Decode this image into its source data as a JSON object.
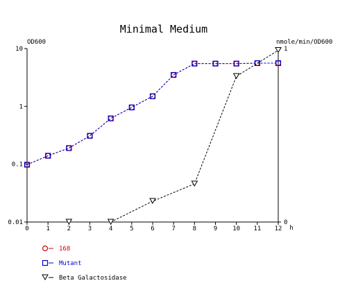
{
  "chart_data": {
    "type": "line",
    "title": "Minimal Medium",
    "ylabel_left": "OD600",
    "ylabel_right": "nmole/min/OD600",
    "xlabel": "h",
    "x_ticks": [
      "0",
      "1",
      "2",
      "3",
      "4",
      "5",
      "6",
      "7",
      "8",
      "9",
      "10",
      "11",
      "12"
    ],
    "y_left_ticks": [
      "10",
      "1",
      "0.1",
      "0.01"
    ],
    "y_left_scale": "log",
    "y_left_range": [
      0.01,
      10
    ],
    "y_right_ticks": [
      "1",
      "0"
    ],
    "y_right_range": [
      0,
      1
    ],
    "x_range": [
      0,
      12
    ],
    "grid": false,
    "series": [
      {
        "name": "168",
        "axis": "left",
        "color": "#cc0000",
        "marker": "circle",
        "x": [
          0,
          1,
          2,
          3,
          4,
          5,
          6,
          7,
          8,
          9,
          10,
          11,
          12
        ],
        "y": [
          0.098,
          0.14,
          0.19,
          0.31,
          0.62,
          0.96,
          1.5,
          3.5,
          5.5,
          5.5,
          5.5,
          5.6,
          5.6
        ]
      },
      {
        "name": "Mutant",
        "axis": "left",
        "color": "#0000cc",
        "marker": "square",
        "x": [
          0,
          1,
          2,
          3,
          4,
          5,
          6,
          7,
          8,
          9,
          10,
          11,
          12
        ],
        "y": [
          0.098,
          0.14,
          0.19,
          0.31,
          0.62,
          0.96,
          1.5,
          3.5,
          5.5,
          5.5,
          5.5,
          5.6,
          5.6
        ]
      },
      {
        "name": "Beta Galactosidase",
        "axis": "right",
        "color": "#000000",
        "marker": "triangle-down",
        "x": [
          2,
          4,
          6,
          8,
          10,
          12
        ],
        "y": [
          0.0,
          0.0,
          0.12,
          0.22,
          0.84,
          0.99
        ]
      }
    ]
  }
}
